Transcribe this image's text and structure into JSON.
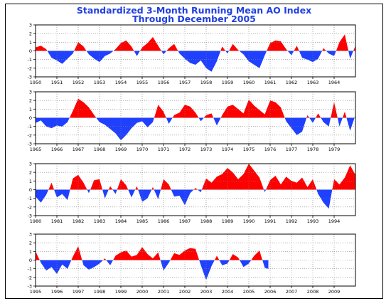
{
  "title_line1": "Standardized 3-Month Running Mean AO Index",
  "title_line2": "Through December 2005",
  "colors": {
    "positive": "#ff0000",
    "negative": "#2040ff",
    "title": "#2040e0",
    "frame": "#000000",
    "grid": "#808080"
  },
  "chart_data": [
    {
      "type": "area",
      "xlim": [
        1950,
        1965
      ],
      "ylim": [
        -3,
        3
      ],
      "yticks": [
        "3",
        "2",
        "1",
        "0",
        "-1",
        "-2",
        "-3"
      ],
      "xticks": [
        "1950",
        "1951",
        "1952",
        "1953",
        "1954",
        "1955",
        "1956",
        "1957",
        "1958",
        "1959",
        "1960",
        "1961",
        "1962",
        "1963",
        "1964"
      ],
      "grid": true,
      "series": [
        {
          "x": [
            1950.0,
            1950.25,
            1950.5,
            1950.75,
            1951.0,
            1951.25,
            1951.5,
            1951.75,
            1952.0,
            1952.25,
            1952.5,
            1952.75,
            1953.0,
            1953.25,
            1953.5,
            1953.75,
            1954.0,
            1954.25,
            1954.5,
            1954.75,
            1955.0,
            1955.25,
            1955.5,
            1955.75,
            1956.0,
            1956.25,
            1956.5,
            1956.75,
            1957.0,
            1957.25,
            1957.5,
            1957.75,
            1958.0,
            1958.25,
            1958.5,
            1958.75,
            1959.0,
            1959.25,
            1959.5,
            1959.75,
            1960.0,
            1960.25,
            1960.5,
            1960.75,
            1961.0,
            1961.25,
            1961.5,
            1961.75,
            1962.0,
            1962.25,
            1962.5,
            1962.75,
            1963.0,
            1963.25,
            1963.5,
            1963.75,
            1964.0,
            1964.25,
            1964.5,
            1964.75,
            1965.0
          ],
          "values": [
            0.4,
            0.6,
            0.2,
            -0.8,
            -1.1,
            -1.5,
            -0.9,
            -0.3,
            1.0,
            0.5,
            -0.4,
            -0.9,
            -1.3,
            -0.6,
            -0.3,
            0.2,
            0.9,
            1.2,
            0.5,
            -0.6,
            0.4,
            0.9,
            1.6,
            0.6,
            -0.4,
            0.3,
            0.8,
            -0.3,
            -0.9,
            -1.4,
            -1.6,
            -1.1,
            -2.0,
            -2.4,
            -1.2,
            0.5,
            -0.3,
            0.8,
            0.1,
            -0.4,
            -1.2,
            -1.6,
            -2.0,
            -0.5,
            0.9,
            1.2,
            1.1,
            0.2,
            -0.5,
            0.6,
            -0.8,
            -1.0,
            -1.3,
            -0.9,
            0.3,
            -0.3,
            -0.6,
            1.0,
            1.9,
            -0.9,
            0.6
          ]
        }
      ]
    },
    {
      "type": "area",
      "xlim": [
        1965,
        1980
      ],
      "ylim": [
        -3,
        3
      ],
      "yticks": [
        "3",
        "2",
        "1",
        "0",
        "-1",
        "-2",
        "-3"
      ],
      "xticks": [
        "1965",
        "1966",
        "1967",
        "1968",
        "1969",
        "1970",
        "1971",
        "1972",
        "1973",
        "1974",
        "1975",
        "1976",
        "1977",
        "1978",
        "1979"
      ],
      "grid": true,
      "series": [
        {
          "x": [
            1965.0,
            1965.25,
            1965.5,
            1965.75,
            1966.0,
            1966.25,
            1966.5,
            1966.75,
            1967.0,
            1967.25,
            1967.5,
            1967.75,
            1968.0,
            1968.25,
            1968.5,
            1968.75,
            1969.0,
            1969.25,
            1969.5,
            1969.75,
            1970.0,
            1970.25,
            1970.5,
            1970.75,
            1971.0,
            1971.25,
            1971.5,
            1971.75,
            1972.0,
            1972.25,
            1972.5,
            1972.75,
            1973.0,
            1973.25,
            1973.5,
            1973.75,
            1974.0,
            1974.25,
            1974.5,
            1974.75,
            1975.0,
            1975.25,
            1975.5,
            1975.75,
            1976.0,
            1976.25,
            1976.5,
            1976.75,
            1977.0,
            1977.25,
            1977.5,
            1977.75,
            1978.0,
            1978.25,
            1978.5,
            1978.75,
            1979.0,
            1979.25,
            1979.5,
            1979.75,
            1980.0
          ],
          "values": [
            -0.6,
            -0.3,
            -1.0,
            -1.2,
            -0.9,
            -1.0,
            -0.5,
            0.8,
            2.2,
            1.8,
            1.2,
            0.3,
            -0.5,
            -0.8,
            -1.3,
            -1.8,
            -2.6,
            -2.0,
            -1.2,
            -0.6,
            -0.4,
            -1.1,
            -0.5,
            1.5,
            0.7,
            -0.7,
            0.3,
            0.6,
            1.5,
            1.3,
            0.6,
            -0.4,
            0.3,
            0.5,
            -0.9,
            0.3,
            1.3,
            1.5,
            1.0,
            0.5,
            2.1,
            1.4,
            0.9,
            0.4,
            2.0,
            1.8,
            1.2,
            -0.4,
            -1.2,
            -2.0,
            -1.6,
            0.3,
            -0.6,
            0.5,
            -0.5,
            -1.0,
            1.8,
            -1.0,
            0.7,
            -1.5,
            0.3
          ]
        }
      ]
    },
    {
      "type": "area",
      "xlim": [
        1980,
        1995
      ],
      "ylim": [
        -3,
        3
      ],
      "yticks": [
        "3",
        "2",
        "1",
        "0",
        "-1",
        "-2",
        "-3"
      ],
      "xticks": [
        "1980",
        "1981",
        "1982",
        "1983",
        "1984",
        "1985",
        "1986",
        "1987",
        "1988",
        "1989",
        "1990",
        "1991",
        "1992",
        "1993",
        "1994"
      ],
      "grid": true,
      "series": [
        {
          "x": [
            1980.0,
            1980.25,
            1980.5,
            1980.75,
            1981.0,
            1981.25,
            1981.5,
            1981.75,
            1982.0,
            1982.25,
            1982.5,
            1982.75,
            1983.0,
            1983.25,
            1983.5,
            1983.75,
            1984.0,
            1984.25,
            1984.5,
            1984.75,
            1985.0,
            1985.25,
            1985.5,
            1985.75,
            1986.0,
            1986.25,
            1986.5,
            1986.75,
            1987.0,
            1987.25,
            1987.5,
            1987.75,
            1988.0,
            1988.25,
            1988.5,
            1988.75,
            1989.0,
            1989.25,
            1989.5,
            1989.75,
            1990.0,
            1990.25,
            1990.5,
            1990.75,
            1991.0,
            1991.25,
            1991.5,
            1991.75,
            1992.0,
            1992.25,
            1992.5,
            1992.75,
            1993.0,
            1993.25,
            1993.5,
            1993.75,
            1994.0,
            1994.25,
            1994.5,
            1994.75,
            1995.0
          ],
          "values": [
            -0.8,
            -1.5,
            -0.6,
            0.8,
            -0.9,
            -0.5,
            -1.2,
            1.3,
            1.7,
            0.8,
            -0.4,
            1.1,
            1.2,
            -1.0,
            0.4,
            -0.5,
            1.2,
            0.5,
            -0.9,
            0.4,
            -1.4,
            -1.0,
            0.3,
            -1.1,
            1.2,
            0.6,
            -0.8,
            -0.7,
            -1.8,
            -0.4,
            0.2,
            -0.3,
            1.3,
            0.8,
            1.5,
            1.8,
            2.5,
            2.0,
            1.2,
            1.8,
            3.0,
            2.2,
            1.4,
            -0.3,
            1.1,
            1.6,
            0.6,
            1.5,
            1.0,
            0.8,
            1.4,
            0.3,
            1.2,
            -0.5,
            -1.5,
            -2.2,
            1.2,
            0.6,
            1.4,
            2.8,
            1.7
          ]
        }
      ]
    },
    {
      "type": "area",
      "xlim": [
        1995,
        2010
      ],
      "ylim": [
        -3,
        3
      ],
      "yticks": [
        "3",
        "2",
        "1",
        "0",
        "-1",
        "-2",
        "-3"
      ],
      "xticks": [
        "1995",
        "1996",
        "1997",
        "1998",
        "1999",
        "2000",
        "2001",
        "2002",
        "2003",
        "2004",
        "2005",
        "2006",
        "2007",
        "2008",
        "2009"
      ],
      "grid": true,
      "series": [
        {
          "x": [
            1995.0,
            1995.25,
            1995.5,
            1995.75,
            1996.0,
            1996.25,
            1996.5,
            1996.75,
            1997.0,
            1997.25,
            1997.5,
            1997.75,
            1998.0,
            1998.25,
            1998.5,
            1998.75,
            1999.0,
            1999.25,
            1999.5,
            1999.75,
            2000.0,
            2000.25,
            2000.5,
            2000.75,
            2001.0,
            2001.25,
            2001.5,
            2001.75,
            2002.0,
            2002.25,
            2002.5,
            2002.75,
            2003.0,
            2003.25,
            2003.5,
            2003.75,
            2004.0,
            2004.25,
            2004.5,
            2004.75,
            2005.0,
            2005.25,
            2005.5,
            2005.75,
            2005.917
          ],
          "values": [
            1.0,
            -0.3,
            -1.2,
            -0.8,
            -1.6,
            -0.5,
            -1.0,
            0.4,
            1.6,
            -0.6,
            -1.1,
            -0.8,
            -0.4,
            0.2,
            -0.6,
            0.5,
            0.9,
            1.1,
            0.4,
            0.6,
            1.5,
            0.7,
            0.2,
            0.9,
            -1.2,
            -0.3,
            0.8,
            0.6,
            1.1,
            1.4,
            1.3,
            -0.6,
            -2.3,
            -0.7,
            0.5,
            -0.6,
            -0.4,
            0.7,
            0.3,
            -0.8,
            -0.4,
            0.5,
            1.1,
            -0.9,
            -1.0
          ]
        }
      ]
    }
  ]
}
